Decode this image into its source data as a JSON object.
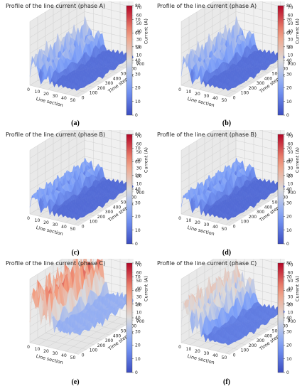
{
  "panels": [
    {
      "id": "a",
      "title": "Profile of the line current (phase A)",
      "caption": "(a)",
      "surface": "A"
    },
    {
      "id": "b",
      "title": "Profile of the line current (phase A)",
      "caption": "(b)",
      "surface": "A"
    },
    {
      "id": "c",
      "title": "Profile of the line current (phase B)",
      "caption": "(c)",
      "surface": "B"
    },
    {
      "id": "d",
      "title": "Profile of the line current (phase B)",
      "caption": "(d)",
      "surface": "B"
    },
    {
      "id": "e",
      "title": "Profile of the line current (phase C)",
      "caption": "(e)",
      "surface": "C1"
    },
    {
      "id": "f",
      "title": "Profile of the line current (phase C)",
      "caption": "(f)",
      "surface": "C2"
    }
  ],
  "chart_data": [
    {
      "panel": "a",
      "type": "surface3d",
      "title": "Profile of the line current (phase A)",
      "xlabel": "Line section",
      "ylabel": "Time step (t)",
      "zlabel": "Current (A)",
      "x_ticks": [
        0,
        10,
        20,
        30,
        40,
        50
      ],
      "y_ticks": [
        0,
        100,
        200,
        300,
        400,
        500,
        600,
        700
      ],
      "z_ticks": [
        0,
        10,
        20,
        30,
        40,
        50,
        60,
        70,
        80
      ],
      "colorbar_ticks": [
        0,
        10,
        20,
        30,
        40,
        50,
        60,
        70,
        80
      ],
      "colormap": "coolwarm",
      "xlim": [
        0,
        55
      ],
      "ylim": [
        0,
        700
      ],
      "zlim": [
        0,
        80
      ]
    },
    {
      "panel": "b",
      "type": "surface3d",
      "title": "Profile of the line current (phase A)",
      "xlabel": "Line section",
      "ylabel": "Time step (t)",
      "zlabel": "Current (A)",
      "x_ticks": [
        0,
        10,
        20,
        30,
        40,
        50
      ],
      "y_ticks": [
        0,
        100,
        200,
        300,
        400,
        500,
        600,
        700
      ],
      "z_ticks": [
        0,
        10,
        20,
        30,
        40,
        50,
        60,
        70,
        80
      ],
      "colorbar_ticks": [
        0,
        10,
        20,
        30,
        40,
        50,
        60,
        70,
        80
      ],
      "colormap": "coolwarm",
      "xlim": [
        0,
        55
      ],
      "ylim": [
        0,
        700
      ],
      "zlim": [
        0,
        80
      ]
    },
    {
      "panel": "c",
      "type": "surface3d",
      "title": "Profile of the line current (phase B)",
      "xlabel": "Line section",
      "ylabel": "Time step (t)",
      "zlabel": "Current (A)",
      "x_ticks": [
        0,
        10,
        20,
        30,
        40,
        50
      ],
      "y_ticks": [
        0,
        100,
        200,
        300,
        400,
        500,
        600,
        700
      ],
      "z_ticks": [
        0,
        10,
        20,
        30,
        40,
        50,
        60,
        70,
        80
      ],
      "colorbar_ticks": [
        0,
        10,
        20,
        30,
        40,
        50,
        60,
        70,
        80
      ],
      "colormap": "coolwarm",
      "xlim": [
        0,
        55
      ],
      "ylim": [
        0,
        700
      ],
      "zlim": [
        0,
        80
      ]
    },
    {
      "panel": "d",
      "type": "surface3d",
      "title": "Profile of the line current (phase B)",
      "xlabel": "Line section",
      "ylabel": "Time step (t)",
      "zlabel": "Current (A)",
      "x_ticks": [
        0,
        10,
        20,
        30,
        40,
        50
      ],
      "y_ticks": [
        0,
        100,
        200,
        300,
        400,
        500,
        600,
        700
      ],
      "z_ticks": [
        0,
        10,
        20,
        30,
        40,
        50,
        60,
        70,
        80
      ],
      "colorbar_ticks": [
        0,
        10,
        20,
        30,
        40,
        50,
        60,
        70,
        80
      ],
      "colormap": "coolwarm",
      "xlim": [
        0,
        55
      ],
      "ylim": [
        0,
        700
      ],
      "zlim": [
        0,
        80
      ]
    },
    {
      "panel": "e",
      "type": "surface3d",
      "title": "Profile of the line current (phase C)",
      "xlabel": "Line section",
      "ylabel": "Time step (t)",
      "zlabel": "Current (A)",
      "x_ticks": [
        0,
        10,
        20,
        30,
        40,
        50
      ],
      "y_ticks": [
        0,
        100,
        200,
        300,
        400,
        500,
        600,
        700
      ],
      "z_ticks": [
        0,
        10,
        20,
        30,
        40,
        50,
        60,
        70,
        80
      ],
      "colorbar_ticks": [
        0,
        10,
        20,
        30,
        40,
        50,
        60,
        70,
        80
      ],
      "colormap": "coolwarm",
      "xlim": [
        0,
        55
      ],
      "ylim": [
        0,
        700
      ],
      "zlim": [
        0,
        80
      ]
    },
    {
      "panel": "f",
      "type": "surface3d",
      "title": "Profile of the line current (phase C)",
      "xlabel": "Line section",
      "ylabel": "Time step (t)",
      "zlabel": "Current (A)",
      "x_ticks": [
        0,
        10,
        20,
        30,
        40,
        50
      ],
      "y_ticks": [
        0,
        100,
        200,
        300,
        400,
        500,
        600,
        700
      ],
      "z_ticks": [
        0,
        10,
        20,
        30,
        40,
        50,
        60,
        70,
        80
      ],
      "colorbar_ticks": [
        0,
        10,
        20,
        30,
        40,
        50,
        60,
        70,
        80
      ],
      "colormap": "coolwarm",
      "xlim": [
        0,
        55
      ],
      "ylim": [
        0,
        700
      ],
      "zlim": [
        0,
        80
      ]
    }
  ],
  "surfaces": {
    "A": {
      "head": [
        34,
        38,
        42,
        46,
        40,
        44,
        48,
        36,
        30,
        26,
        22,
        18,
        14,
        12
      ],
      "peak": 44,
      "tail": 10
    },
    "B": {
      "head": [
        26,
        30,
        33,
        30,
        35,
        32,
        34,
        31,
        28,
        25,
        22,
        18,
        14,
        12
      ],
      "peak": 34,
      "tail": 9
    },
    "C1": {
      "head": [
        78,
        74,
        80,
        76,
        79,
        73,
        81,
        77,
        75,
        70,
        66,
        62,
        58,
        55
      ],
      "peak": 80,
      "tail": 30
    },
    "C2": {
      "head": [
        58,
        62,
        60,
        64,
        59,
        61,
        63,
        57,
        52,
        48,
        44,
        40,
        36,
        33
      ],
      "peak": 64,
      "tail": 14
    }
  }
}
